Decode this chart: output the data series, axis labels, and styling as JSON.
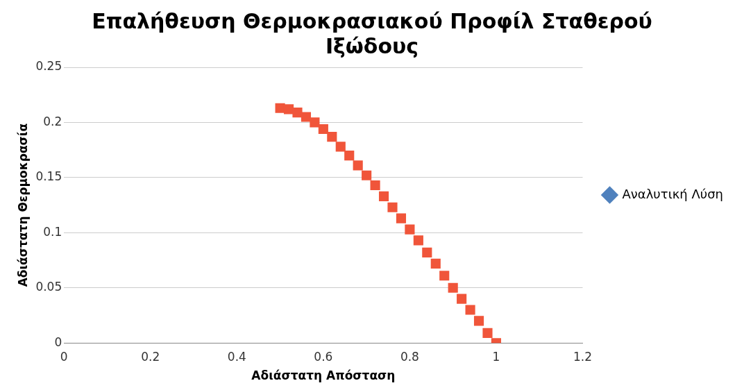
{
  "chart_data": {
    "type": "scatter",
    "title": "Επαλήθευση Θερμοκρασιακού Προφίλ Σταθερού Ιξώδους",
    "xlabel": "Αδιάστατη Απόσταση",
    "ylabel": "Αδιάστατη Θερμοκρασία",
    "xlim": [
      0,
      1.2
    ],
    "xticks": [
      0,
      0.2,
      0.4,
      0.6,
      0.8,
      1,
      1.2
    ],
    "ylim": [
      0,
      0.25
    ],
    "yticks": [
      0,
      0.05,
      0.1,
      0.15,
      0.2,
      0.25
    ],
    "grid": "y",
    "legend": "right",
    "x": [
      0.5,
      0.52,
      0.54,
      0.56,
      0.58,
      0.6,
      0.62,
      0.64,
      0.66,
      0.68,
      0.7,
      0.72,
      0.74,
      0.76,
      0.78,
      0.8,
      0.82,
      0.84,
      0.86,
      0.88,
      0.9,
      0.92,
      0.94,
      0.96,
      0.98,
      1
    ],
    "series": [
      {
        "name": "Αναλυτική Λύση",
        "color": "#4f81bd",
        "marker": "diamond",
        "values": [
          null,
          null,
          null,
          null,
          null,
          null,
          null,
          null,
          null,
          null,
          null,
          null,
          null,
          null,
          null,
          null,
          null,
          null,
          null,
          null,
          null,
          null,
          null,
          null,
          null,
          null
        ]
      },
      {
        "color": "#f0553a",
        "marker": "square",
        "values": [
          0.213,
          0.212,
          0.209,
          0.205,
          0.2,
          0.194,
          0.187,
          0.178,
          0.17,
          0.161,
          0.152,
          0.143,
          0.133,
          0.123,
          0.113,
          0.103,
          0.093,
          0.082,
          0.072,
          0.061,
          0.05,
          0.04,
          0.03,
          0.02,
          0.009,
          0
        ]
      }
    ]
  }
}
